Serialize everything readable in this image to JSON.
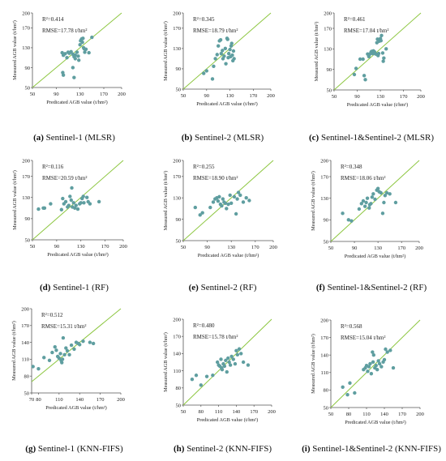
{
  "colors": {
    "point": "#5f9ea0",
    "fit_line": "#8cc63f",
    "axis": "#555555"
  },
  "panels": [
    {
      "caption_letter": "(a)",
      "caption_text": "Sentinel-1 (MLSR)",
      "r2_label": "R²=0.414",
      "rmse_label": "RMSE=17.78 t/hm²"
    },
    {
      "caption_letter": "(b)",
      "caption_text": "Sentinel-2 (MLSR)",
      "r2_label": "R²=0.345",
      "rmse_label": "RMSE=18.79 t/hm²"
    },
    {
      "caption_letter": "(c)",
      "caption_text": "Sentinel-1&Sentinel-2 (MLSR)",
      "r2_label": "R²=0.461",
      "rmse_label": "RMSE=17.04 t/hm²"
    },
    {
      "caption_letter": "(d)",
      "caption_text": "Sentinel-1 (RF)",
      "r2_label": "R²=0.116",
      "rmse_label": "RMSE=20.59 t/hm²"
    },
    {
      "caption_letter": "(e)",
      "caption_text": "Sentinel-2 (RF)",
      "r2_label": "R²=0.255",
      "rmse_label": "RMSE=18.90 t/hm²"
    },
    {
      "caption_letter": "(f)",
      "caption_text": "Sentinel-1&Sentinel-2 (RF)",
      "r2_label": "R²=0.348",
      "rmse_label": "RMSE=18.06 t/hm²"
    },
    {
      "caption_letter": "(g)",
      "caption_text": "Sentinel-1 (KNN-FIFS)",
      "r2_label": "R²=0.512",
      "rmse_label": "RMSE=15.31 t/hm²"
    },
    {
      "caption_letter": "(h)",
      "caption_text": "Sentinel-2 (KNN-FIFS)",
      "r2_label": "R²=0.480",
      "rmse_label": "RMSE=15.78 t/hm²"
    },
    {
      "caption_letter": "(i)",
      "caption_text": "Sentinel-1&Sentinel-2 (KNN-FIFS)",
      "r2_label": "R²=0.568",
      "rmse_label": "RMSE=15.04 t/hm²"
    }
  ],
  "chart_data": [
    {
      "type": "scatter",
      "title": "",
      "xlabel": "Predicated AGB value (t/hm²)",
      "ylabel": "Measured AGB value (t/hm²)",
      "xlim": [
        50,
        200
      ],
      "ylim": [
        50,
        200
      ],
      "xticks": [
        50,
        90,
        130,
        170,
        200
      ],
      "yticks": [
        50,
        90,
        130,
        170,
        200
      ],
      "fit_line": [
        [
          50,
          50
        ],
        [
          200,
          200
        ]
      ],
      "points": [
        [
          100,
          120
        ],
        [
          102,
          115
        ],
        [
          105,
          118
        ],
        [
          108,
          110
        ],
        [
          110,
          121
        ],
        [
          112,
          119
        ],
        [
          115,
          122
        ],
        [
          118,
          117
        ],
        [
          120,
          112
        ],
        [
          122,
          115
        ],
        [
          125,
          121
        ],
        [
          127,
          113
        ],
        [
          128,
          105
        ],
        [
          130,
          136
        ],
        [
          131,
          144
        ],
        [
          132,
          146
        ],
        [
          133,
          148
        ],
        [
          134,
          141
        ],
        [
          135,
          149
        ],
        [
          136,
          130
        ],
        [
          137,
          128
        ],
        [
          138,
          121
        ],
        [
          140,
          127
        ],
        [
          145,
          120
        ],
        [
          150,
          151
        ],
        [
          101,
          80
        ],
        [
          102,
          75
        ],
        [
          118,
          90
        ],
        [
          120,
          70
        ],
        [
          122,
          108
        ]
      ]
    },
    {
      "type": "scatter",
      "title": "",
      "xlabel": "Predicated AGB value (t/hm²)",
      "ylabel": "Measured AGB value (t/hm²)",
      "xlim": [
        50,
        200
      ],
      "ylim": [
        50,
        200
      ],
      "xticks": [
        50,
        90,
        130,
        170,
        200
      ],
      "yticks": [
        50,
        90,
        130,
        170,
        200
      ],
      "fit_line": [
        [
          50,
          50
        ],
        [
          200,
          200
        ]
      ],
      "points": [
        [
          85,
          81
        ],
        [
          90,
          86
        ],
        [
          100,
          70
        ],
        [
          102,
          95
        ],
        [
          105,
          110
        ],
        [
          108,
          118
        ],
        [
          110,
          135
        ],
        [
          112,
          145
        ],
        [
          114,
          147
        ],
        [
          115,
          120
        ],
        [
          117,
          126
        ],
        [
          118,
          110
        ],
        [
          120,
          115
        ],
        [
          122,
          130
        ],
        [
          123,
          100
        ],
        [
          125,
          150
        ],
        [
          126,
          148
        ],
        [
          127,
          112
        ],
        [
          128,
          120
        ],
        [
          130,
          128
        ],
        [
          131,
          114
        ],
        [
          132,
          135
        ],
        [
          133,
          140
        ],
        [
          134,
          117
        ],
        [
          135,
          106
        ],
        [
          136,
          125
        ],
        [
          137,
          110
        ]
      ]
    },
    {
      "type": "scatter",
      "title": "",
      "xlabel": "Predicated AGB value (t/hm²)",
      "ylabel": "Measured AGB value (t/hm²)",
      "xlim": [
        50,
        200
      ],
      "ylim": [
        50,
        200
      ],
      "xticks": [
        50,
        90,
        130,
        170,
        200
      ],
      "yticks": [
        50,
        90,
        130,
        170,
        200
      ],
      "fit_line": [
        [
          50,
          50
        ],
        [
          200,
          200
        ]
      ],
      "points": [
        [
          85,
          80
        ],
        [
          88,
          92
        ],
        [
          95,
          110
        ],
        [
          100,
          110
        ],
        [
          102,
          78
        ],
        [
          104,
          70
        ],
        [
          108,
          120
        ],
        [
          110,
          115
        ],
        [
          112,
          120
        ],
        [
          114,
          124
        ],
        [
          115,
          125
        ],
        [
          117,
          121
        ],
        [
          118,
          126
        ],
        [
          120,
          124
        ],
        [
          122,
          120
        ],
        [
          124,
          142
        ],
        [
          125,
          149
        ],
        [
          126,
          117
        ],
        [
          127,
          121
        ],
        [
          128,
          145
        ],
        [
          130,
          150
        ],
        [
          131,
          146
        ],
        [
          132,
          156
        ],
        [
          134,
          122
        ],
        [
          135,
          106
        ],
        [
          136,
          112
        ],
        [
          140,
          130
        ]
      ]
    },
    {
      "type": "scatter",
      "title": "",
      "xlabel": "Predicated AGB value (t/hm²)",
      "ylabel": "Measured AGB value (t/hm²)",
      "xlim": [
        50,
        200
      ],
      "ylim": [
        50,
        200
      ],
      "xticks": [
        50,
        90,
        130,
        170,
        200
      ],
      "yticks": [
        50,
        90,
        130,
        170,
        200
      ],
      "fit_line": [
        [
          50,
          50
        ],
        [
          200,
          200
        ]
      ],
      "points": [
        [
          60,
          108
        ],
        [
          68,
          110
        ],
        [
          70,
          110
        ],
        [
          80,
          118
        ],
        [
          98,
          107
        ],
        [
          100,
          128
        ],
        [
          102,
          118
        ],
        [
          105,
          122
        ],
        [
          108,
          112
        ],
        [
          110,
          115
        ],
        [
          112,
          132
        ],
        [
          114,
          125
        ],
        [
          115,
          148
        ],
        [
          116,
          112
        ],
        [
          118,
          120
        ],
        [
          120,
          110
        ],
        [
          122,
          115
        ],
        [
          125,
          108
        ],
        [
          128,
          118
        ],
        [
          130,
          120
        ],
        [
          132,
          128
        ],
        [
          134,
          132
        ],
        [
          135,
          120
        ],
        [
          140,
          130
        ],
        [
          142,
          122
        ],
        [
          145,
          118
        ],
        [
          160,
          122
        ]
      ]
    },
    {
      "type": "scatter",
      "title": "",
      "xlabel": "Predicated AGB value (t/hm²)",
      "ylabel": "Measured AGB value (t/hm²)",
      "xlim": [
        50,
        200
      ],
      "ylim": [
        50,
        200
      ],
      "xticks": [
        50,
        90,
        130,
        170,
        200
      ],
      "yticks": [
        50,
        90,
        130,
        170,
        200
      ],
      "fit_line": [
        [
          50,
          50
        ],
        [
          200,
          200
        ]
      ],
      "points": [
        [
          70,
          112
        ],
        [
          78,
          98
        ],
        [
          82,
          102
        ],
        [
          95,
          112
        ],
        [
          100,
          122
        ],
        [
          103,
          128
        ],
        [
          106,
          130
        ],
        [
          108,
          124
        ],
        [
          110,
          132
        ],
        [
          112,
          118
        ],
        [
          114,
          115
        ],
        [
          116,
          128
        ],
        [
          118,
          122
        ],
        [
          120,
          120
        ],
        [
          122,
          110
        ],
        [
          125,
          118
        ],
        [
          128,
          135
        ],
        [
          130,
          120
        ],
        [
          135,
          132
        ],
        [
          138,
          100
        ],
        [
          140,
          128
        ],
        [
          142,
          140
        ],
        [
          145,
          135
        ],
        [
          150,
          122
        ],
        [
          155,
          130
        ],
        [
          160,
          125
        ]
      ]
    },
    {
      "type": "scatter",
      "title": "",
      "xlabel": "Predicated AGB value (t/hm²)",
      "ylabel": "Measured AGB value (t/hm²)",
      "xlim": [
        50,
        200
      ],
      "ylim": [
        50,
        200
      ],
      "xticks": [
        50,
        90,
        130,
        170,
        200
      ],
      "yticks": [
        50,
        90,
        130,
        170,
        200
      ],
      "fit_line": [
        [
          50,
          50
        ],
        [
          200,
          200
        ]
      ],
      "points": [
        [
          70,
          102
        ],
        [
          80,
          90
        ],
        [
          85,
          88
        ],
        [
          98,
          110
        ],
        [
          102,
          120
        ],
        [
          105,
          125
        ],
        [
          108,
          115
        ],
        [
          110,
          122
        ],
        [
          112,
          130
        ],
        [
          115,
          112
        ],
        [
          116,
          118
        ],
        [
          118,
          120
        ],
        [
          120,
          132
        ],
        [
          122,
          138
        ],
        [
          125,
          128
        ],
        [
          128,
          145
        ],
        [
          130,
          148
        ],
        [
          132,
          142
        ],
        [
          135,
          140
        ],
        [
          138,
          102
        ],
        [
          140,
          122
        ],
        [
          142,
          135
        ],
        [
          145,
          140
        ],
        [
          150,
          138
        ],
        [
          160,
          122
        ]
      ]
    },
    {
      "type": "scatter",
      "title": "",
      "xlabel": "Predicated AGB value (t/hm²)",
      "ylabel": "Measured AGB value (t/hm²)",
      "xlim": [
        70,
        200
      ],
      "ylim": [
        50,
        200
      ],
      "xticks": [
        70,
        80,
        110,
        140,
        170,
        200
      ],
      "yticks": [
        50,
        80,
        110,
        140,
        170,
        200
      ],
      "fit_line": [
        [
          70,
          70
        ],
        [
          200,
          200
        ]
      ],
      "points": [
        [
          72,
          97
        ],
        [
          80,
          93
        ],
        [
          88,
          113
        ],
        [
          96,
          108
        ],
        [
          100,
          122
        ],
        [
          104,
          132
        ],
        [
          106,
          126
        ],
        [
          108,
          115
        ],
        [
          110,
          112
        ],
        [
          112,
          120
        ],
        [
          113,
          108
        ],
        [
          114,
          104
        ],
        [
          115,
          110
        ],
        [
          116,
          148
        ],
        [
          118,
          118
        ],
        [
          120,
          130
        ],
        [
          122,
          125
        ],
        [
          125,
          118
        ],
        [
          128,
          135
        ],
        [
          132,
          128
        ],
        [
          135,
          140
        ],
        [
          138,
          138
        ],
        [
          140,
          136
        ],
        [
          145,
          142
        ],
        [
          155,
          140
        ],
        [
          160,
          138
        ]
      ]
    },
    {
      "type": "scatter",
      "title": "",
      "xlabel": "Predicated AGB value (t/hm²)",
      "ylabel": "Measured AGB value (t/hm²)",
      "xlim": [
        50,
        200
      ],
      "ylim": [
        50,
        200
      ],
      "xticks": [
        50,
        80,
        110,
        140,
        170,
        200
      ],
      "yticks": [
        50,
        80,
        110,
        140,
        170,
        200
      ],
      "fit_line": [
        [
          50,
          50
        ],
        [
          200,
          200
        ]
      ],
      "points": [
        [
          65,
          95
        ],
        [
          72,
          102
        ],
        [
          80,
          85
        ],
        [
          90,
          100
        ],
        [
          100,
          102
        ],
        [
          108,
          125
        ],
        [
          110,
          120
        ],
        [
          112,
          118
        ],
        [
          114,
          130
        ],
        [
          115,
          115
        ],
        [
          116,
          112
        ],
        [
          118,
          122
        ],
        [
          120,
          118
        ],
        [
          122,
          128
        ],
        [
          124,
          108
        ],
        [
          126,
          132
        ],
        [
          128,
          125
        ],
        [
          130,
          120
        ],
        [
          132,
          135
        ],
        [
          135,
          130
        ],
        [
          138,
          122
        ],
        [
          140,
          145
        ],
        [
          142,
          138
        ],
        [
          145,
          148
        ],
        [
          148,
          140
        ],
        [
          152,
          125
        ],
        [
          160,
          120
        ]
      ]
    },
    {
      "type": "scatter",
      "title": "",
      "xlabel": "Predicated AGB value (t/hm²)",
      "ylabel": "Measured AGB value (t/hm²)",
      "xlim": [
        50,
        200
      ],
      "ylim": [
        50,
        200
      ],
      "xticks": [
        50,
        80,
        110,
        140,
        170,
        200
      ],
      "yticks": [
        50,
        80,
        110,
        140,
        170,
        200
      ],
      "fit_line": [
        [
          50,
          50
        ],
        [
          200,
          200
        ]
      ],
      "points": [
        [
          70,
          85
        ],
        [
          78,
          72
        ],
        [
          82,
          92
        ],
        [
          90,
          75
        ],
        [
          105,
          115
        ],
        [
          108,
          118
        ],
        [
          110,
          122
        ],
        [
          112,
          112
        ],
        [
          114,
          120
        ],
        [
          116,
          125
        ],
        [
          118,
          108
        ],
        [
          120,
          145
        ],
        [
          121,
          128
        ],
        [
          122,
          140
        ],
        [
          124,
          118
        ],
        [
          126,
          122
        ],
        [
          128,
          115
        ],
        [
          130,
          130
        ],
        [
          132,
          125
        ],
        [
          135,
          120
        ],
        [
          138,
          128
        ],
        [
          140,
          132
        ],
        [
          142,
          150
        ],
        [
          145,
          145
        ],
        [
          150,
          148
        ],
        [
          155,
          118
        ]
      ]
    }
  ]
}
